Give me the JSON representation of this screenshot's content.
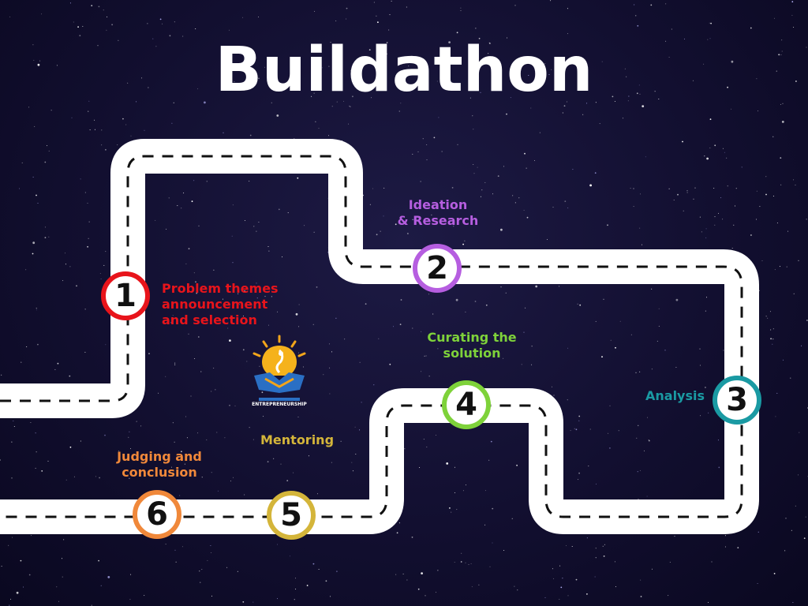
{
  "title": "Buildathon",
  "stages": [
    {
      "number": "1",
      "label_lines": [
        "Problem themes",
        "announcement",
        "and selection"
      ],
      "color": "#e8141b"
    },
    {
      "number": "2",
      "label_lines": [
        "Ideation",
        "& Research"
      ],
      "color": "#b65ee0"
    },
    {
      "number": "3",
      "label_lines": [
        "Analysis"
      ],
      "color": "#1a9aa3"
    },
    {
      "number": "4",
      "label_lines": [
        "Curating the",
        "solution"
      ],
      "color": "#7ed23a"
    },
    {
      "number": "5",
      "label_lines": [
        "Mentoring"
      ],
      "color": "#d4b53a"
    },
    {
      "number": "6",
      "label_lines": [
        "Judging and",
        "conclusion"
      ],
      "color": "#f0883a"
    }
  ],
  "logo": {
    "icon": "entrepreneurship-bulb-handshake-logo",
    "text": "ENTREPRENEURSHIP"
  }
}
